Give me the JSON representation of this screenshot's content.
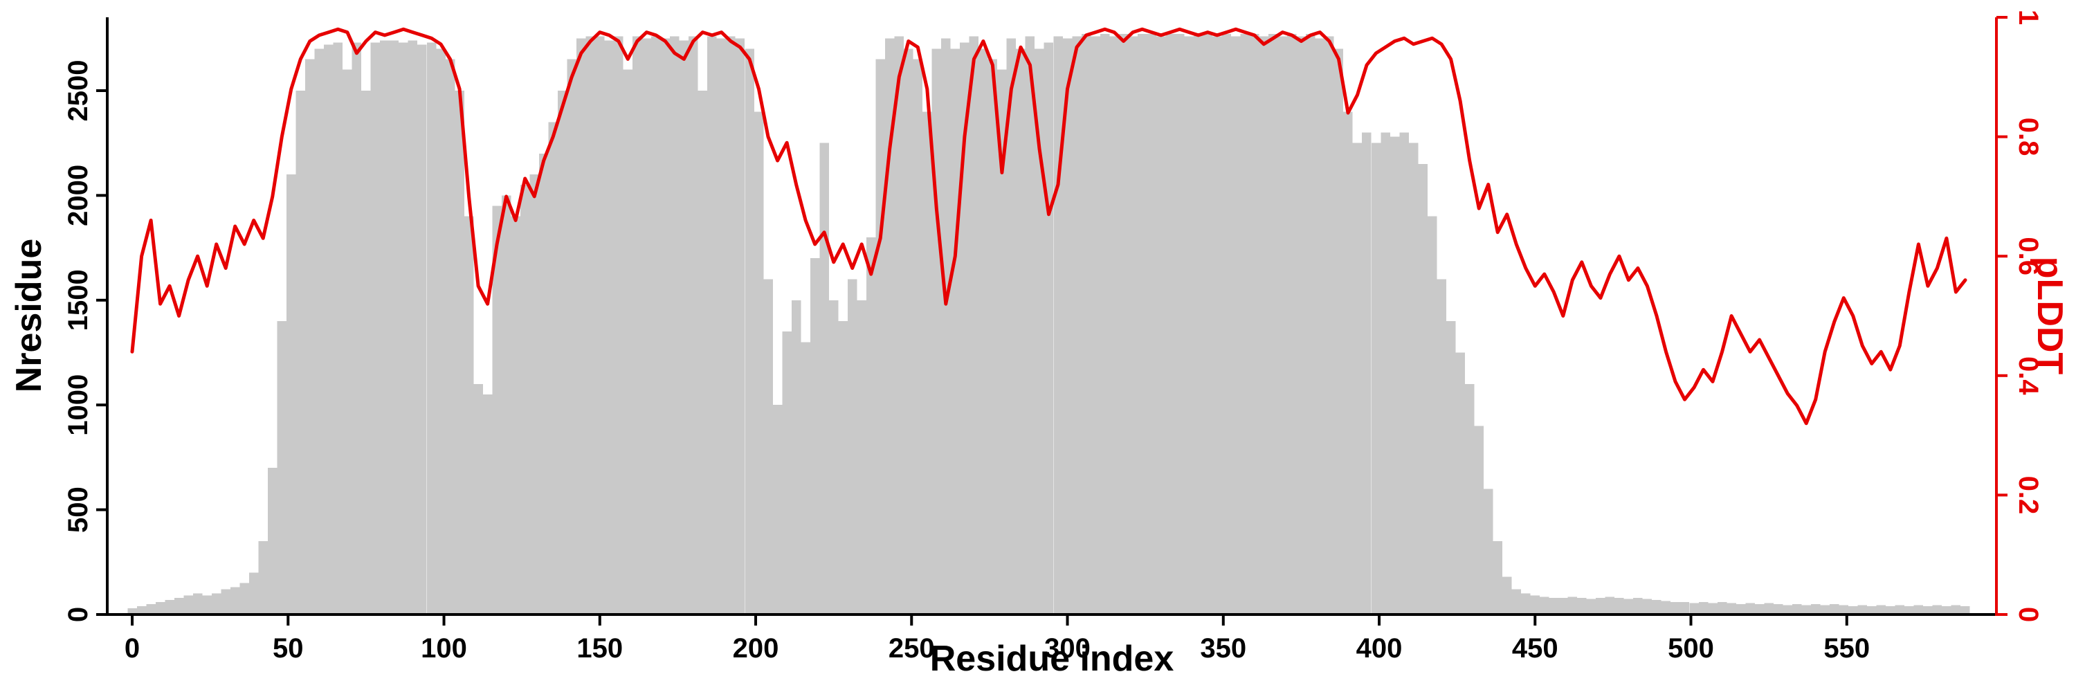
{
  "figure": {
    "xlabel": "Residue index",
    "ylabel_left": "Nresidue",
    "ylabel_right": "pLDDT"
  },
  "colors": {
    "bar": "#c9c9c9",
    "line": "#e60000",
    "axis_left": "#000000",
    "axis_right": "#e60000"
  },
  "chart_data": {
    "type": "bar+line",
    "title": "",
    "x_start": 0,
    "x_step": 3,
    "x_axis": {
      "label": "Residue index",
      "ticks": [
        0,
        50,
        100,
        150,
        200,
        250,
        300,
        350,
        400,
        450,
        500,
        550
      ],
      "range": [
        -8,
        598
      ]
    },
    "y_left": {
      "label": "Nresidue",
      "ticks": [
        0,
        500,
        1000,
        1500,
        2000,
        2500
      ],
      "range": [
        0,
        2850
      ],
      "color": "#000000"
    },
    "y_right": {
      "label": "pLDDT",
      "ticks": [
        0,
        0.2,
        0.4,
        0.6,
        0.8,
        1
      ],
      "range": [
        0,
        1
      ],
      "color": "#e60000"
    },
    "grid": false,
    "legend": "none",
    "series": [
      {
        "name": "Nresidue",
        "type": "bar",
        "axis": "left",
        "color": "#c9c9c9",
        "values": [
          30,
          40,
          50,
          60,
          70,
          80,
          90,
          100,
          90,
          100,
          120,
          130,
          150,
          200,
          350,
          700,
          1400,
          2100,
          2500,
          2650,
          2700,
          2720,
          2730,
          2600,
          2730,
          2500,
          2730,
          2740,
          2740,
          2730,
          2740,
          2720,
          2730,
          2700,
          2650,
          2500,
          1900,
          1100,
          1050,
          1950,
          2000,
          1900,
          2050,
          2100,
          2200,
          2350,
          2500,
          2650,
          2750,
          2760,
          2760,
          2740,
          2760,
          2600,
          2760,
          2750,
          2760,
          2750,
          2760,
          2740,
          2760,
          2500,
          2760,
          2750,
          2760,
          2750,
          2700,
          2400,
          1600,
          1000,
          1350,
          1500,
          1300,
          1700,
          2250,
          1500,
          1400,
          1600,
          1500,
          1800,
          2650,
          2750,
          2760,
          2700,
          2650,
          2400,
          2700,
          2750,
          2700,
          2730,
          2760,
          2700,
          2650,
          2600,
          2750,
          2700,
          2760,
          2700,
          2730,
          2760,
          2750,
          2760,
          2770,
          2760,
          2770,
          2760,
          2770,
          2760,
          2770,
          2770,
          2760,
          2770,
          2770,
          2760,
          2770,
          2770,
          2760,
          2770,
          2760,
          2770,
          2770,
          2760,
          2770,
          2760,
          2770,
          2760,
          2770,
          2750,
          2760,
          2700,
          2400,
          2250,
          2300,
          2250,
          2300,
          2280,
          2300,
          2250,
          2150,
          1900,
          1600,
          1400,
          1250,
          1100,
          900,
          600,
          350,
          180,
          120,
          100,
          90,
          85,
          80,
          80,
          85,
          80,
          75,
          80,
          85,
          80,
          75,
          80,
          75,
          70,
          65,
          60,
          60,
          55,
          60,
          55,
          60,
          55,
          50,
          55,
          50,
          55,
          50,
          45,
          50,
          45,
          50,
          45,
          50,
          45,
          40,
          45,
          40,
          45,
          40,
          45,
          40,
          45,
          40,
          45,
          40,
          45,
          40
        ]
      },
      {
        "name": "pLDDT",
        "type": "line",
        "axis": "right",
        "color": "#e60000",
        "values": [
          0.44,
          0.6,
          0.66,
          0.52,
          0.55,
          0.5,
          0.56,
          0.6,
          0.55,
          0.62,
          0.58,
          0.65,
          0.62,
          0.66,
          0.63,
          0.7,
          0.8,
          0.88,
          0.93,
          0.96,
          0.97,
          0.975,
          0.98,
          0.975,
          0.94,
          0.96,
          0.975,
          0.97,
          0.975,
          0.98,
          0.975,
          0.97,
          0.965,
          0.955,
          0.93,
          0.88,
          0.7,
          0.55,
          0.52,
          0.62,
          0.7,
          0.66,
          0.73,
          0.7,
          0.76,
          0.8,
          0.85,
          0.9,
          0.94,
          0.96,
          0.975,
          0.97,
          0.96,
          0.93,
          0.96,
          0.975,
          0.97,
          0.96,
          0.94,
          0.93,
          0.96,
          0.975,
          0.97,
          0.975,
          0.96,
          0.95,
          0.93,
          0.88,
          0.8,
          0.76,
          0.79,
          0.72,
          0.66,
          0.62,
          0.64,
          0.59,
          0.62,
          0.58,
          0.62,
          0.57,
          0.63,
          0.78,
          0.9,
          0.96,
          0.95,
          0.88,
          0.68,
          0.52,
          0.6,
          0.8,
          0.93,
          0.96,
          0.92,
          0.74,
          0.88,
          0.95,
          0.92,
          0.78,
          0.67,
          0.72,
          0.88,
          0.95,
          0.97,
          0.975,
          0.98,
          0.975,
          0.96,
          0.975,
          0.98,
          0.975,
          0.97,
          0.975,
          0.98,
          0.975,
          0.97,
          0.975,
          0.97,
          0.975,
          0.98,
          0.975,
          0.97,
          0.955,
          0.965,
          0.975,
          0.97,
          0.96,
          0.97,
          0.975,
          0.96,
          0.93,
          0.84,
          0.87,
          0.92,
          0.94,
          0.95,
          0.96,
          0.965,
          0.955,
          0.96,
          0.965,
          0.955,
          0.93,
          0.86,
          0.76,
          0.68,
          0.72,
          0.64,
          0.67,
          0.62,
          0.58,
          0.55,
          0.57,
          0.54,
          0.5,
          0.56,
          0.59,
          0.55,
          0.53,
          0.57,
          0.6,
          0.56,
          0.58,
          0.55,
          0.5,
          0.44,
          0.39,
          0.36,
          0.38,
          0.41,
          0.39,
          0.44,
          0.5,
          0.47,
          0.44,
          0.46,
          0.43,
          0.4,
          0.37,
          0.35,
          0.32,
          0.36,
          0.44,
          0.49,
          0.53,
          0.5,
          0.45,
          0.42,
          0.44,
          0.41,
          0.45,
          0.54,
          0.62,
          0.55,
          0.58,
          0.63,
          0.54,
          0.56
        ]
      }
    ]
  }
}
